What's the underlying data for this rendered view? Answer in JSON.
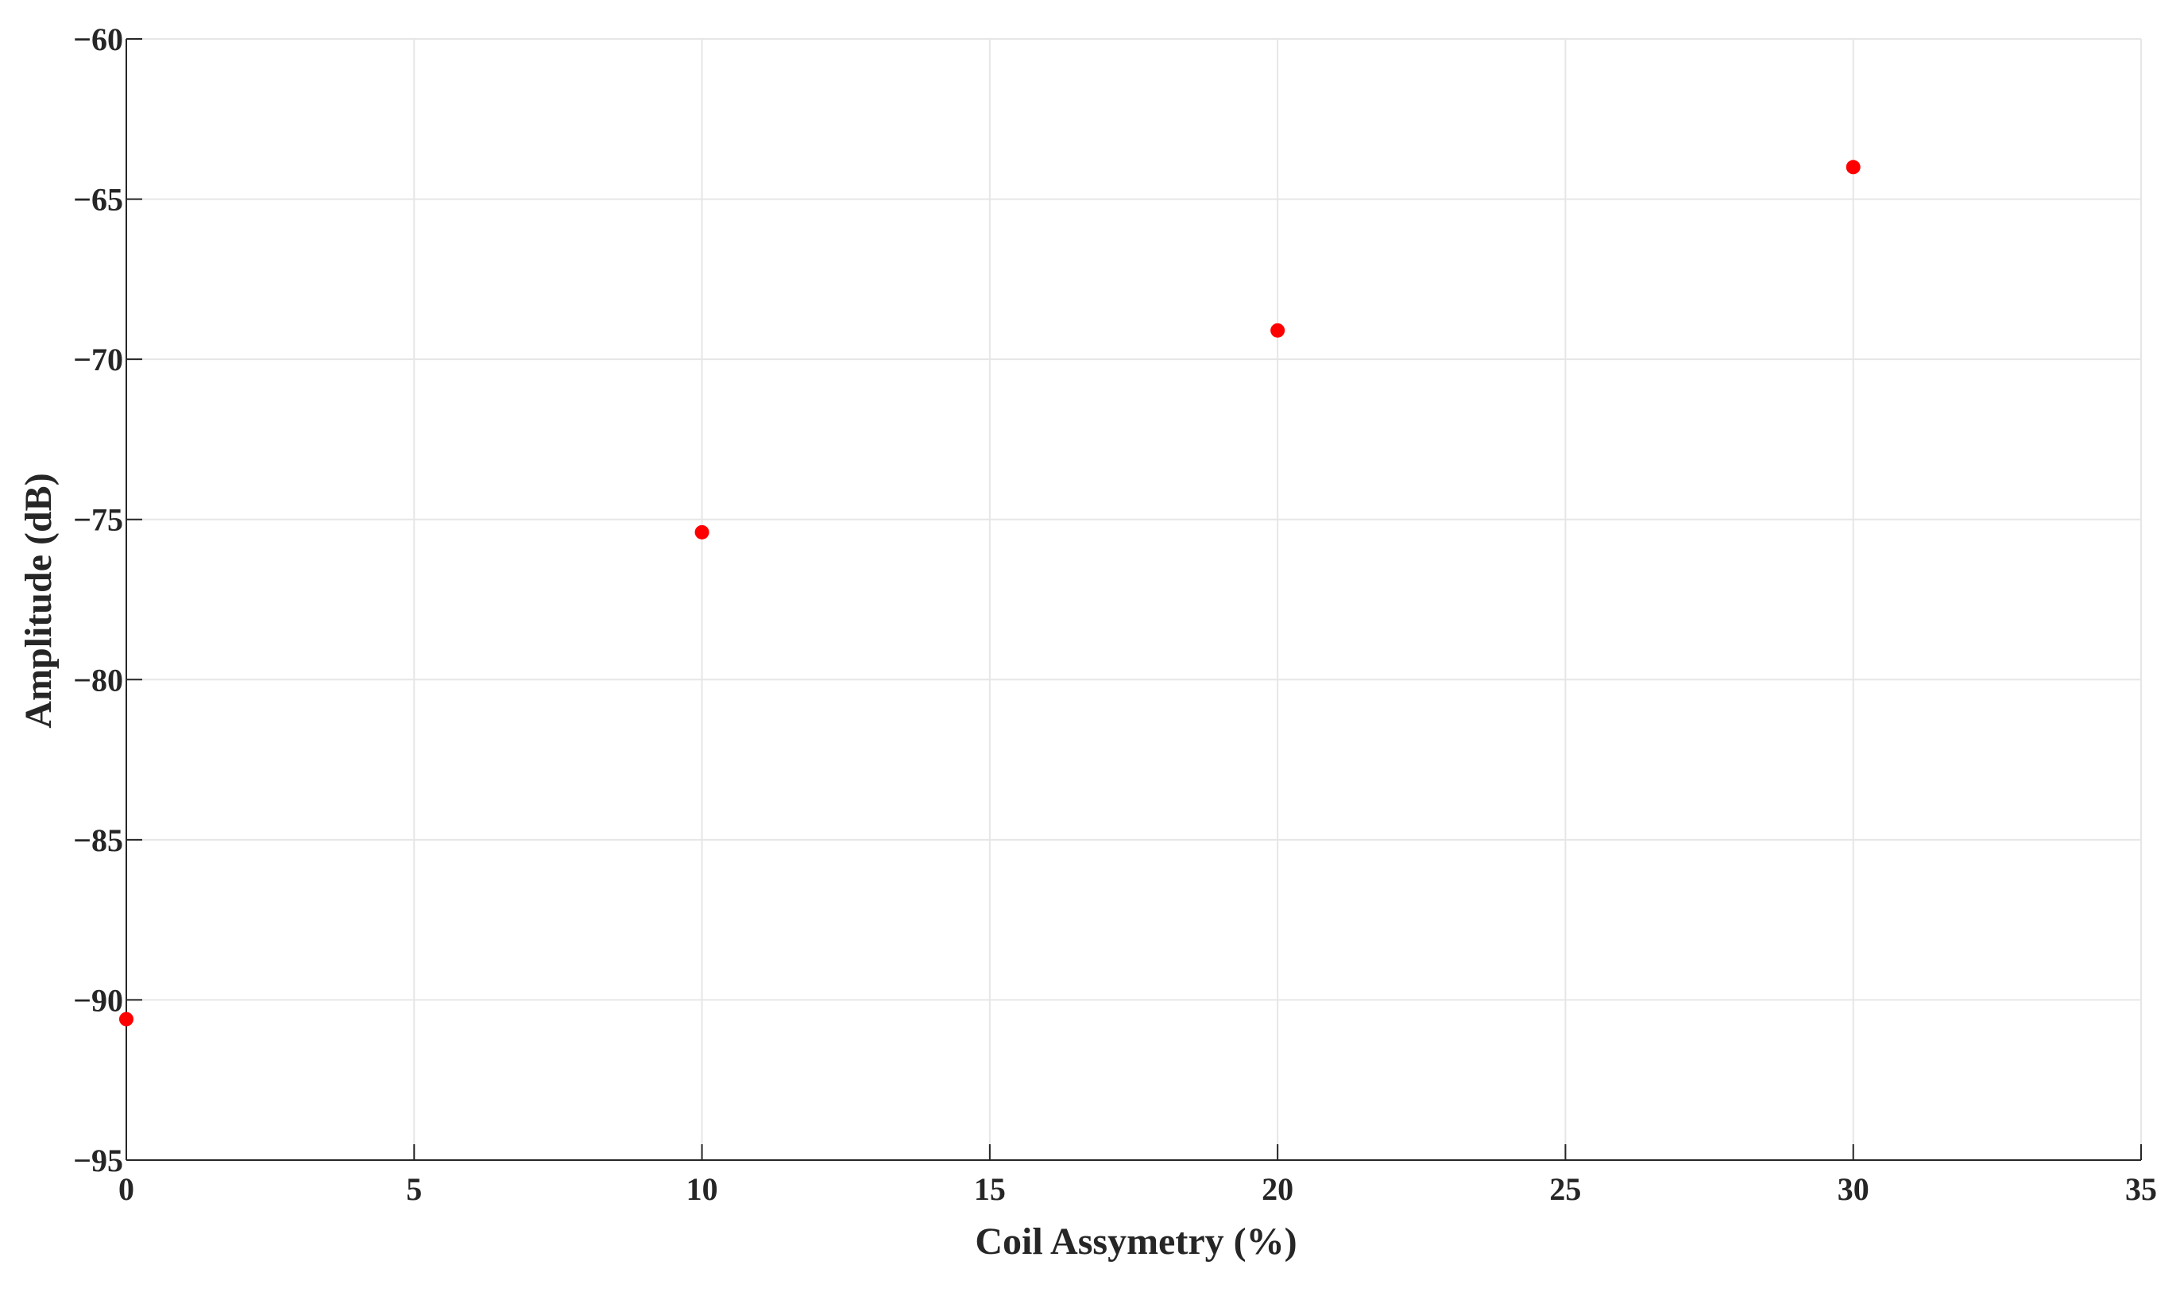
{
  "chart_data": {
    "type": "scatter",
    "title": "",
    "xlabel": "Coil Assymetry (%)",
    "ylabel": "Amplitude (dB)",
    "xlim": [
      0,
      35
    ],
    "ylim": [
      -95,
      -60
    ],
    "xticks": [
      0,
      5,
      10,
      15,
      20,
      25,
      30,
      35
    ],
    "yticks": [
      -60,
      -65,
      -70,
      -75,
      -80,
      -85,
      -90,
      -95
    ],
    "xtick_labels": [
      "0",
      "5",
      "10",
      "15",
      "20",
      "25",
      "30",
      "35"
    ],
    "ytick_labels": [
      "−60",
      "−65",
      "−70",
      "−75",
      "−80",
      "−85",
      "−90",
      "−95"
    ],
    "grid": true,
    "legend": "none",
    "marker_color": "#ff0000",
    "series": [
      {
        "x": [
          0,
          10,
          20,
          30
        ],
        "y": [
          -90.6,
          -75.4,
          -69.1,
          -64.0
        ]
      }
    ]
  }
}
